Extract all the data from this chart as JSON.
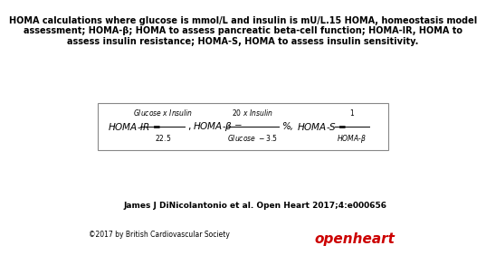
{
  "title_line1": "HOMA calculations where glucose is mmol/L and insulin is mU/L.15 HOMA, homeostasis model",
  "title_line2": "assessment; HOMA-β; HOMA to assess pancreatic beta-cell function; HOMA-IR, HOMA to",
  "title_line3": "assess insulin resistance; HOMA-S, HOMA to assess insulin sensitivity.",
  "citation": "James J DiNicolantonio et al. Open Heart 2017;4:e000656",
  "copyright": "©2017 by British Cardiovascular Society",
  "openheart_text": "openheart",
  "openheart_color": "#cc0000",
  "bg_color": "#ffffff",
  "title_fontsize": 7.0,
  "citation_fontsize": 6.5,
  "copyright_fontsize": 5.5,
  "formula_fontsize": 7.5
}
